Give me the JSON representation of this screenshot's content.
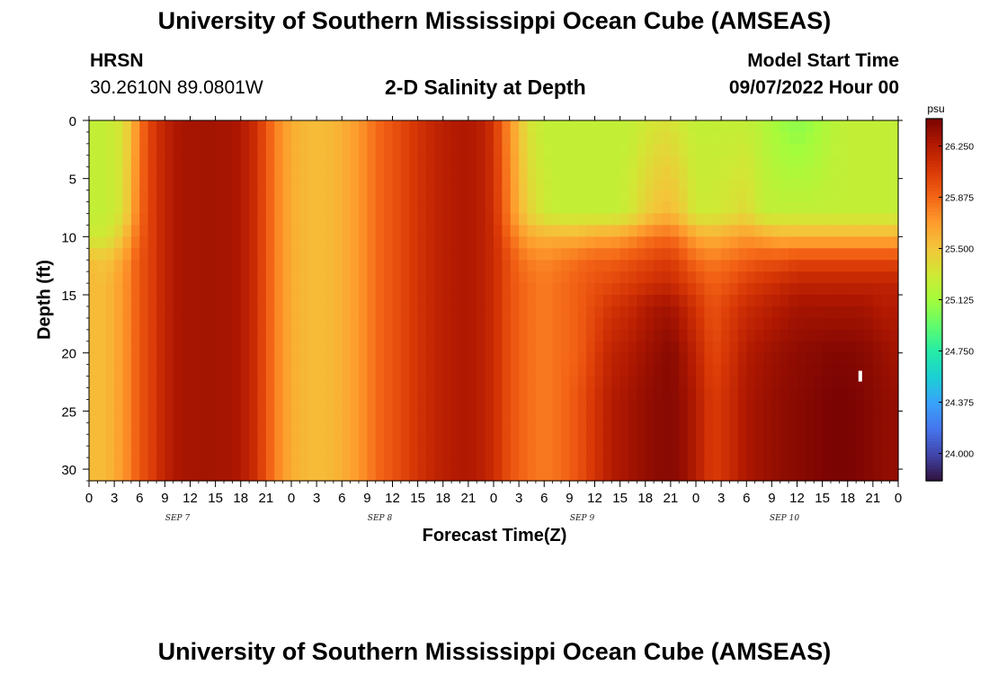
{
  "header": {
    "title": "University of Southern Mississippi Ocean Cube (AMSEAS)",
    "station": "HRSN",
    "coords": "30.2610N  89.0801W",
    "subtitle": "2-D Salinity at Depth",
    "model_start_label": "Model Start Time",
    "model_start_value": "09/07/2022 Hour 00"
  },
  "footer": {
    "title": "University of Southern Mississippi Ocean Cube (AMSEAS)"
  },
  "chart_data": {
    "type": "heatmap",
    "xlabel": "Forecast Time(Z)",
    "ylabel": "Depth (ft)",
    "x_tick_labels": [
      "0",
      "3",
      "6",
      "9",
      "12",
      "15",
      "18",
      "21",
      "0",
      "3",
      "6",
      "9",
      "12",
      "15",
      "18",
      "21",
      "0",
      "3",
      "6",
      "9",
      "12",
      "15",
      "18",
      "21",
      "0",
      "3",
      "6",
      "9",
      "12",
      "15",
      "18",
      "21",
      "0"
    ],
    "day_labels": [
      "SEP 7",
      "SEP 8",
      "SEP 9",
      "SEP 10"
    ],
    "y_ticks": [
      0,
      5,
      10,
      15,
      20,
      25,
      30
    ],
    "y_tick_labels": [
      "0",
      "5",
      "10",
      "15",
      "20",
      "25",
      "30"
    ],
    "xlim_hours": [
      0,
      96
    ],
    "ylim_depth_ft": [
      0,
      31
    ],
    "colorbar": {
      "unit": "psu",
      "ticks": [
        "26.250",
        "25.875",
        "25.500",
        "25.125",
        "24.750",
        "24.375",
        "24.000"
      ],
      "vmin": 23.8,
      "vmax": 26.45,
      "colors": [
        "#30123b",
        "#4145ab",
        "#4675ed",
        "#39a2fc",
        "#1bcfd4",
        "#24eca6",
        "#61fc6c",
        "#a4fc3b",
        "#d1e834",
        "#f3c63a",
        "#fe9b2d",
        "#f36315",
        "#d93806",
        "#b11901",
        "#7a0402"
      ]
    },
    "profile_hours": [
      0,
      2,
      4,
      5,
      6,
      7,
      8,
      9,
      10,
      11,
      12,
      13,
      14,
      15,
      16,
      17,
      18,
      19,
      20,
      21,
      22,
      23,
      24,
      26,
      28,
      30,
      32,
      34,
      36,
      38,
      40,
      42,
      44,
      46,
      47,
      48,
      49,
      50,
      51,
      52,
      54,
      56,
      58,
      60,
      62,
      64,
      66,
      68,
      69,
      70,
      72,
      74,
      76,
      78,
      80,
      82,
      84,
      86,
      88,
      90,
      92,
      94,
      96
    ],
    "depth_levels_ft": [
      0,
      8,
      10,
      12,
      14,
      16,
      20,
      24,
      31
    ],
    "salinity_psu": [
      [
        25.25,
        25.25,
        25.3,
        25.55,
        25.55,
        25.55,
        25.55,
        25.55,
        25.55
      ],
      [
        25.25,
        25.25,
        25.3,
        25.5,
        25.55,
        25.55,
        25.55,
        25.55,
        25.55
      ],
      [
        25.35,
        25.35,
        25.5,
        25.65,
        25.7,
        25.7,
        25.7,
        25.7,
        25.7
      ],
      [
        25.55,
        25.6,
        25.7,
        25.8,
        25.8,
        25.8,
        25.8,
        25.8,
        25.8
      ],
      [
        25.8,
        25.85,
        25.9,
        25.95,
        25.95,
        25.95,
        25.95,
        25.95,
        25.95
      ],
      [
        26.0,
        26.0,
        26.0,
        26.0,
        26.0,
        26.0,
        26.0,
        26.0,
        26.0
      ],
      [
        26.1,
        26.1,
        26.1,
        26.1,
        26.1,
        26.1,
        26.1,
        26.1,
        26.1
      ],
      [
        26.2,
        26.2,
        26.2,
        26.2,
        26.2,
        26.2,
        26.2,
        26.2,
        26.2
      ],
      [
        26.25,
        26.25,
        26.25,
        26.25,
        26.25,
        26.25,
        26.25,
        26.25,
        26.25
      ],
      [
        26.3,
        26.3,
        26.3,
        26.3,
        26.3,
        26.3,
        26.3,
        26.3,
        26.3
      ],
      [
        26.3,
        26.3,
        26.3,
        26.3,
        26.3,
        26.3,
        26.3,
        26.3,
        26.3
      ],
      [
        26.3,
        26.3,
        26.3,
        26.3,
        26.3,
        26.3,
        26.3,
        26.3,
        26.3
      ],
      [
        26.32,
        26.32,
        26.32,
        26.32,
        26.32,
        26.32,
        26.32,
        26.32,
        26.32
      ],
      [
        26.3,
        26.3,
        26.3,
        26.3,
        26.3,
        26.3,
        26.3,
        26.3,
        26.3
      ],
      [
        26.3,
        26.3,
        26.3,
        26.3,
        26.3,
        26.3,
        26.3,
        26.3,
        26.3
      ],
      [
        26.3,
        26.3,
        26.3,
        26.3,
        26.3,
        26.3,
        26.3,
        26.3,
        26.3
      ],
      [
        26.25,
        26.25,
        26.25,
        26.25,
        26.25,
        26.25,
        26.25,
        26.25,
        26.25
      ],
      [
        26.2,
        26.2,
        26.2,
        26.2,
        26.2,
        26.2,
        26.2,
        26.2,
        26.2
      ],
      [
        26.1,
        26.1,
        26.1,
        26.1,
        26.1,
        26.1,
        26.1,
        26.1,
        26.1
      ],
      [
        25.95,
        25.95,
        25.95,
        25.95,
        25.95,
        25.95,
        25.95,
        25.95,
        25.95
      ],
      [
        25.8,
        25.8,
        25.8,
        25.8,
        25.8,
        25.8,
        25.8,
        25.8,
        25.8
      ],
      [
        25.7,
        25.7,
        25.7,
        25.7,
        25.7,
        25.7,
        25.7,
        25.7,
        25.7
      ],
      [
        25.62,
        25.62,
        25.62,
        25.62,
        25.62,
        25.62,
        25.62,
        25.62,
        25.62
      ],
      [
        25.55,
        25.55,
        25.55,
        25.55,
        25.55,
        25.55,
        25.55,
        25.55,
        25.55
      ],
      [
        25.55,
        25.55,
        25.55,
        25.55,
        25.55,
        25.55,
        25.55,
        25.55,
        25.55
      ],
      [
        25.6,
        25.6,
        25.6,
        25.6,
        25.6,
        25.6,
        25.6,
        25.6,
        25.6
      ],
      [
        25.7,
        25.7,
        25.7,
        25.7,
        25.7,
        25.7,
        25.7,
        25.7,
        25.7
      ],
      [
        25.85,
        25.85,
        25.85,
        25.85,
        25.85,
        25.85,
        25.85,
        25.85,
        25.85
      ],
      [
        25.95,
        25.95,
        25.95,
        25.95,
        25.95,
        25.95,
        25.95,
        25.95,
        25.95
      ],
      [
        26.05,
        26.05,
        26.05,
        26.05,
        26.05,
        26.05,
        26.05,
        26.05,
        26.05
      ],
      [
        26.15,
        26.15,
        26.15,
        26.15,
        26.15,
        26.15,
        26.15,
        26.15,
        26.15
      ],
      [
        26.22,
        26.22,
        26.22,
        26.22,
        26.22,
        26.22,
        26.22,
        26.22,
        26.22
      ],
      [
        26.27,
        26.27,
        26.27,
        26.27,
        26.27,
        26.27,
        26.27,
        26.27,
        26.27
      ],
      [
        26.25,
        26.25,
        26.25,
        26.25,
        26.25,
        26.25,
        26.25,
        26.25,
        26.25
      ],
      [
        26.2,
        26.2,
        26.2,
        26.2,
        26.2,
        26.2,
        26.2,
        26.2,
        26.2
      ],
      [
        26.1,
        26.12,
        26.15,
        26.15,
        26.15,
        26.15,
        26.15,
        26.15,
        26.15
      ],
      [
        25.9,
        25.95,
        26.0,
        26.05,
        26.05,
        26.05,
        26.05,
        26.05,
        26.05
      ],
      [
        25.7,
        25.75,
        25.85,
        25.95,
        25.95,
        25.95,
        25.95,
        25.95,
        25.95
      ],
      [
        25.55,
        25.6,
        25.75,
        25.85,
        25.9,
        25.9,
        25.9,
        25.9,
        25.9
      ],
      [
        25.35,
        25.45,
        25.65,
        25.8,
        25.85,
        25.85,
        25.85,
        25.85,
        25.85
      ],
      [
        25.25,
        25.3,
        25.6,
        25.75,
        25.8,
        25.8,
        25.8,
        25.8,
        25.8
      ],
      [
        25.25,
        25.25,
        25.6,
        25.8,
        25.85,
        25.85,
        25.85,
        25.85,
        25.85
      ],
      [
        25.25,
        25.25,
        25.6,
        25.85,
        25.9,
        25.9,
        25.9,
        25.95,
        25.95
      ],
      [
        25.25,
        25.25,
        25.65,
        25.9,
        25.95,
        26.0,
        26.05,
        26.1,
        26.1
      ],
      [
        25.25,
        25.25,
        25.65,
        25.9,
        26.0,
        26.1,
        26.2,
        26.25,
        26.25
      ],
      [
        25.25,
        25.3,
        25.7,
        25.95,
        26.05,
        26.15,
        26.25,
        26.3,
        26.3
      ],
      [
        25.3,
        25.45,
        25.8,
        26.0,
        26.1,
        26.25,
        26.32,
        26.36,
        26.36
      ],
      [
        25.35,
        25.55,
        25.85,
        26.05,
        26.15,
        26.3,
        26.38,
        26.4,
        26.4
      ],
      [
        25.35,
        25.55,
        25.85,
        26.05,
        26.15,
        26.3,
        26.4,
        26.4,
        26.4
      ],
      [
        25.3,
        25.5,
        25.8,
        26.0,
        26.1,
        26.25,
        26.35,
        26.38,
        26.38
      ],
      [
        25.25,
        25.3,
        25.65,
        25.85,
        26.0,
        26.1,
        26.2,
        26.25,
        26.25
      ],
      [
        25.25,
        25.3,
        25.6,
        25.8,
        25.9,
        25.95,
        26.0,
        26.05,
        26.05
      ],
      [
        25.25,
        25.35,
        25.65,
        25.85,
        25.95,
        26.05,
        26.1,
        26.15,
        26.15
      ],
      [
        25.25,
        25.4,
        25.7,
        25.9,
        26.05,
        26.15,
        26.25,
        26.28,
        26.28
      ],
      [
        25.2,
        25.25,
        25.65,
        25.95,
        26.1,
        26.2,
        26.3,
        26.33,
        26.33
      ],
      [
        25.1,
        25.25,
        25.6,
        25.95,
        26.15,
        26.25,
        26.35,
        26.37,
        26.37
      ],
      [
        25.05,
        25.25,
        25.6,
        26.0,
        26.2,
        26.3,
        26.38,
        26.4,
        26.4
      ],
      [
        25.1,
        25.25,
        25.6,
        26.0,
        26.2,
        26.3,
        26.4,
        26.42,
        26.42
      ],
      [
        25.2,
        25.25,
        25.6,
        26.0,
        26.2,
        26.3,
        26.42,
        26.45,
        26.45
      ],
      [
        25.25,
        25.25,
        25.6,
        26.0,
        26.2,
        26.3,
        26.42,
        26.45,
        26.45
      ],
      [
        25.25,
        25.25,
        25.6,
        26.0,
        26.2,
        26.3,
        26.4,
        26.42,
        26.42
      ],
      [
        25.25,
        25.25,
        25.6,
        26.0,
        26.2,
        26.25,
        26.35,
        26.38,
        26.38
      ],
      [
        25.25,
        25.25,
        25.6,
        26.0,
        26.2,
        26.25,
        26.3,
        26.35,
        26.35
      ]
    ],
    "annotation_marker": {
      "hour": 91.5,
      "depth_ft": 22,
      "color": "#ffffff"
    }
  }
}
